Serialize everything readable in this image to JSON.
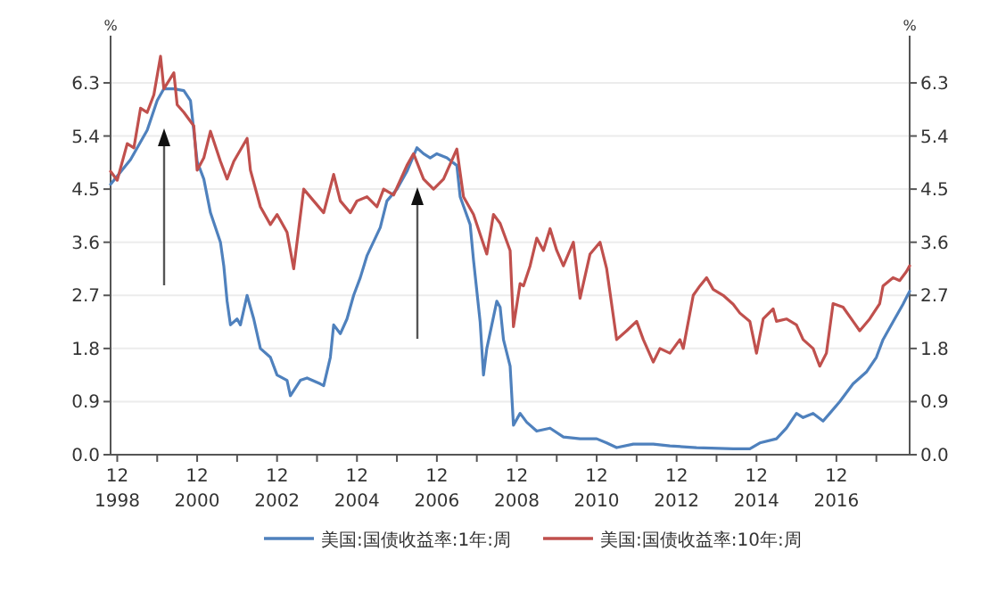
{
  "chart_data": {
    "type": "line",
    "ylabel": "%",
    "y2label": "%",
    "grid": "y",
    "legend": "bottom",
    "marker": "none",
    "line_style": "solid",
    "xlim": [
      "1998-10",
      "2018-10"
    ],
    "xticks": [
      {
        "value": "1998-12",
        "label": "12\n1998"
      },
      {
        "value": "1999-12",
        "label": null
      },
      {
        "value": "2000-12",
        "label": "12\n2000"
      },
      {
        "value": "2001-12",
        "label": null
      },
      {
        "value": "2002-12",
        "label": "12\n2002"
      },
      {
        "value": "2003-12",
        "label": null
      },
      {
        "value": "2004-12",
        "label": "12\n2004"
      },
      {
        "value": "2005-12",
        "label": null
      },
      {
        "value": "2006-12",
        "label": "12\n2006"
      },
      {
        "value": "2007-12",
        "label": null
      },
      {
        "value": "2008-12",
        "label": "12\n2008"
      },
      {
        "value": "2009-12",
        "label": null
      },
      {
        "value": "2010-12",
        "label": "12\n2010"
      },
      {
        "value": "2011-12",
        "label": null
      },
      {
        "value": "2012-12",
        "label": "12\n2012"
      },
      {
        "value": "2013-12",
        "label": null
      },
      {
        "value": "2014-12",
        "label": "12\n2014"
      },
      {
        "value": "2015-12",
        "label": null
      },
      {
        "value": "2016-12",
        "label": "12\n2016"
      },
      {
        "value": "2017-12",
        "label": null
      }
    ],
    "ylim": [
      0,
      7.1
    ],
    "yticks": [
      {
        "value": 0,
        "label": "0.0"
      },
      0.9,
      1.8,
      2.7,
      3.6,
      4.5,
      5.4,
      6.3
    ],
    "y2lim": [
      0,
      7.1
    ],
    "y2ticks": [
      {
        "value": 0,
        "label": "0.0"
      },
      0.9,
      1.8,
      2.7,
      3.6,
      4.5,
      5.4,
      6.3
    ],
    "series": [
      {
        "name": "美国:国债收益率:1年:周",
        "color": "#4f81bd",
        "x": [
          "1998-10",
          "1999-04",
          "1999-09",
          "1999-12",
          "2000-02",
          "2000-05",
          "2000-08",
          "2000-10",
          "2000-12",
          "2001-02",
          "2001-04",
          "2001-07",
          "2001-08",
          "2001-09",
          "2001-10",
          "2001-12",
          "2002-01",
          "2002-03",
          "2002-05",
          "2002-07",
          "2002-10",
          "2002-12",
          "2003-03",
          "2003-04",
          "2003-07",
          "2003-09",
          "2004-01",
          "2004-02",
          "2004-04",
          "2004-05",
          "2004-07",
          "2004-09",
          "2004-11",
          "2005-01",
          "2005-03",
          "2005-07",
          "2005-09",
          "2005-12",
          "2006-03",
          "2006-06",
          "2006-08",
          "2006-10",
          "2006-12",
          "2007-03",
          "2007-06",
          "2007-07",
          "2007-10",
          "2007-11",
          "2008-01",
          "2008-02",
          "2008-03",
          "2008-06",
          "2008-07",
          "2008-08",
          "2008-10",
          "2008-11",
          "2009-01",
          "2009-03",
          "2009-06",
          "2009-10",
          "2010-02",
          "2010-07",
          "2010-12",
          "2011-03",
          "2011-06",
          "2011-11",
          "2012-05",
          "2012-10",
          "2013-06",
          "2014-05",
          "2014-10",
          "2015-01",
          "2015-06",
          "2015-09",
          "2015-12",
          "2016-02",
          "2016-05",
          "2016-08",
          "2016-10",
          "2017-01",
          "2017-05",
          "2017-09",
          "2017-12",
          "2018-02",
          "2018-05",
          "2018-08",
          "2018-10"
        ],
        "values": [
          4.58,
          5.0,
          5.5,
          6.0,
          6.2,
          6.2,
          6.17,
          6.0,
          4.97,
          4.67,
          4.1,
          3.6,
          3.2,
          2.6,
          2.2,
          2.3,
          2.2,
          2.7,
          2.3,
          1.8,
          1.65,
          1.35,
          1.26,
          1.0,
          1.26,
          1.3,
          1.2,
          1.17,
          1.65,
          2.2,
          2.05,
          2.3,
          2.7,
          3.0,
          3.37,
          3.85,
          4.3,
          4.5,
          4.8,
          5.2,
          5.1,
          5.03,
          5.1,
          5.03,
          4.9,
          4.37,
          3.9,
          3.3,
          2.25,
          1.35,
          1.8,
          2.6,
          2.5,
          1.95,
          1.5,
          0.5,
          0.7,
          0.55,
          0.4,
          0.45,
          0.3,
          0.27,
          0.27,
          0.2,
          0.12,
          0.18,
          0.18,
          0.15,
          0.12,
          0.1,
          0.1,
          0.2,
          0.27,
          0.45,
          0.7,
          0.63,
          0.7,
          0.57,
          0.7,
          0.9,
          1.2,
          1.4,
          1.65,
          1.95,
          2.25,
          2.55,
          2.77
        ]
      },
      {
        "name": "美国:国债收益率:10年:周",
        "color": "#c0504d",
        "x": [
          "1998-10",
          "1998-12",
          "1999-03",
          "1999-05",
          "1999-07",
          "1999-09",
          "1999-11",
          "2000-01",
          "2000-02",
          "2000-05",
          "2000-06",
          "2000-08",
          "2000-11",
          "2000-12",
          "2001-02",
          "2001-04",
          "2001-07",
          "2001-09",
          "2001-11",
          "2002-03",
          "2002-04",
          "2002-07",
          "2002-10",
          "2002-12",
          "2003-03",
          "2003-05",
          "2003-08",
          "2003-11",
          "2004-02",
          "2004-05",
          "2004-07",
          "2004-10",
          "2004-12",
          "2005-03",
          "2005-06",
          "2005-08",
          "2005-11",
          "2006-03",
          "2006-05",
          "2006-08",
          "2006-11",
          "2007-02",
          "2007-06",
          "2007-08",
          "2007-11",
          "2008-03",
          "2008-05",
          "2008-07",
          "2008-10",
          "2008-11",
          "2009-01",
          "2009-02",
          "2009-04",
          "2009-06",
          "2009-08",
          "2009-10",
          "2009-12",
          "2010-02",
          "2010-05",
          "2010-07",
          "2010-10",
          "2011-01",
          "2011-03",
          "2011-06",
          "2011-09",
          "2011-12",
          "2012-02",
          "2012-05",
          "2012-07",
          "2012-10",
          "2013-01",
          "2013-02",
          "2013-05",
          "2013-07",
          "2013-09",
          "2013-11",
          "2014-02",
          "2014-05",
          "2014-07",
          "2014-10",
          "2014-12",
          "2015-02",
          "2015-05",
          "2015-06",
          "2015-09",
          "2015-12",
          "2016-02",
          "2016-05",
          "2016-07",
          "2016-09",
          "2016-11",
          "2017-02",
          "2017-05",
          "2017-07",
          "2017-10",
          "2018-01",
          "2018-02",
          "2018-05",
          "2018-07",
          "2018-09",
          "2018-10"
        ],
        "values": [
          4.8,
          4.65,
          5.27,
          5.2,
          5.87,
          5.8,
          6.1,
          6.75,
          6.2,
          6.47,
          5.93,
          5.8,
          5.57,
          4.82,
          5.03,
          5.48,
          4.97,
          4.67,
          4.97,
          5.36,
          4.82,
          4.2,
          3.9,
          4.07,
          3.77,
          3.15,
          4.5,
          4.3,
          4.1,
          4.75,
          4.3,
          4.1,
          4.3,
          4.37,
          4.2,
          4.5,
          4.4,
          4.9,
          5.1,
          4.67,
          4.5,
          4.67,
          5.18,
          4.37,
          4.07,
          3.4,
          4.07,
          3.92,
          3.46,
          2.17,
          2.9,
          2.86,
          3.2,
          3.67,
          3.46,
          3.83,
          3.46,
          3.2,
          3.6,
          2.65,
          3.4,
          3.6,
          3.15,
          1.95,
          2.1,
          2.26,
          1.95,
          1.57,
          1.8,
          1.72,
          1.95,
          1.8,
          2.7,
          2.86,
          3.0,
          2.8,
          2.7,
          2.55,
          2.4,
          2.26,
          1.72,
          2.3,
          2.47,
          2.26,
          2.3,
          2.2,
          1.95,
          1.8,
          1.5,
          1.72,
          2.56,
          2.5,
          2.26,
          2.1,
          2.3,
          2.56,
          2.86,
          3.0,
          2.95,
          3.1,
          3.2
        ]
      }
    ]
  }
}
